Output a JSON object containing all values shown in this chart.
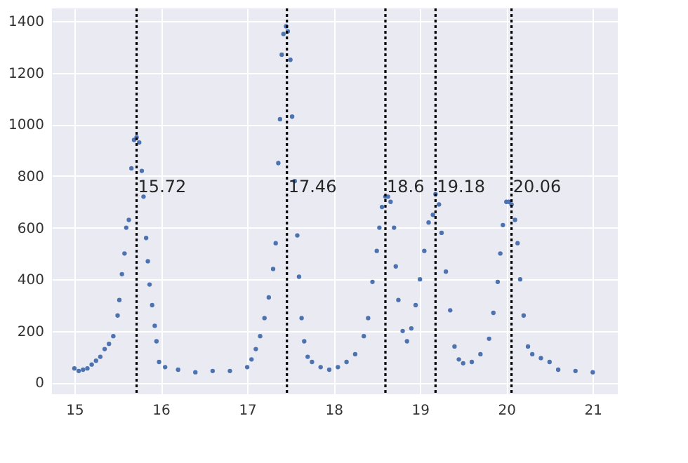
{
  "chart_data": {
    "type": "scatter",
    "marker": "circle",
    "grid": true,
    "xlim": [
      14.74,
      21.29
    ],
    "ylim": [
      -45,
      1449
    ],
    "xticks": [
      15,
      16,
      17,
      18,
      19,
      20,
      21
    ],
    "yticks": [
      0,
      200,
      400,
      600,
      800,
      1000,
      1200,
      1400
    ],
    "x": [
      15.0,
      15.05,
      15.1,
      15.15,
      15.2,
      15.25,
      15.3,
      15.35,
      15.4,
      15.45,
      15.5,
      15.52,
      15.55,
      15.58,
      15.6,
      15.63,
      15.66,
      15.69,
      15.72,
      15.75,
      15.78,
      15.8,
      15.83,
      15.85,
      15.87,
      15.9,
      15.93,
      15.95,
      15.98,
      16.05,
      16.2,
      16.4,
      16.6,
      16.8,
      17.0,
      17.05,
      17.1,
      17.15,
      17.2,
      17.25,
      17.3,
      17.33,
      17.36,
      17.38,
      17.4,
      17.42,
      17.45,
      17.47,
      17.5,
      17.52,
      17.55,
      17.58,
      17.6,
      17.63,
      17.66,
      17.7,
      17.75,
      17.85,
      17.95,
      18.05,
      18.15,
      18.25,
      18.35,
      18.4,
      18.45,
      18.5,
      18.53,
      18.56,
      18.6,
      18.63,
      18.66,
      18.7,
      18.72,
      18.75,
      18.8,
      18.85,
      18.9,
      18.95,
      19.0,
      19.05,
      19.1,
      19.15,
      19.18,
      19.22,
      19.25,
      19.3,
      19.35,
      19.4,
      19.45,
      19.5,
      19.6,
      19.7,
      19.8,
      19.85,
      19.9,
      19.93,
      19.96,
      20.0,
      20.03,
      20.06,
      20.1,
      20.13,
      20.16,
      20.2,
      20.25,
      20.3,
      20.4,
      20.5,
      20.6,
      20.8,
      21.0
    ],
    "series": [
      {
        "color": "#4c72b0",
        "values": [
          55,
          45,
          50,
          55,
          70,
          85,
          100,
          130,
          150,
          180,
          260,
          320,
          420,
          500,
          600,
          630,
          830,
          940,
          950,
          930,
          820,
          720,
          560,
          470,
          380,
          300,
          220,
          160,
          80,
          60,
          50,
          40,
          45,
          45,
          60,
          90,
          130,
          180,
          250,
          330,
          440,
          540,
          850,
          1020,
          1270,
          1350,
          1380,
          1360,
          1250,
          1030,
          780,
          570,
          410,
          250,
          160,
          100,
          80,
          60,
          50,
          60,
          80,
          110,
          180,
          250,
          390,
          510,
          600,
          680,
          720,
          720,
          700,
          600,
          450,
          320,
          200,
          160,
          210,
          300,
          400,
          510,
          620,
          650,
          730,
          690,
          580,
          430,
          280,
          140,
          90,
          75,
          80,
          110,
          170,
          270,
          390,
          500,
          610,
          700,
          700,
          690,
          630,
          540,
          400,
          260,
          140,
          110,
          95,
          80,
          50,
          45,
          40
        ]
      }
    ],
    "ref_lines": [
      {
        "axis": "x",
        "value": 15.72,
        "label": "15.72",
        "color": "#000000",
        "line_style": "dotted"
      },
      {
        "axis": "x",
        "value": 17.46,
        "label": "17.46",
        "color": "#000000",
        "line_style": "dotted"
      },
      {
        "axis": "x",
        "value": 18.6,
        "label": "18.6",
        "color": "#000000",
        "line_style": "dotted"
      },
      {
        "axis": "x",
        "value": 19.18,
        "label": "19.18",
        "color": "#000000",
        "line_style": "dotted"
      },
      {
        "axis": "x",
        "value": 20.06,
        "label": "20.06",
        "color": "#000000",
        "line_style": "dotted"
      }
    ]
  }
}
